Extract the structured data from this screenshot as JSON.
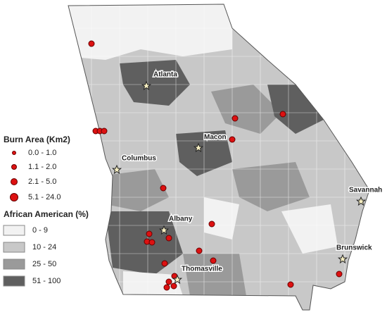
{
  "legend_burn": {
    "title": "Burn Area (Km2)",
    "items": [
      "0.0 - 1.0",
      "1.1 - 2.0",
      "2.1 - 5.0",
      "5.1 - 24.0"
    ]
  },
  "legend_race": {
    "title": "African American (%)",
    "items": [
      "0 - 9",
      "10 - 24",
      "25 - 50",
      "51 - 100"
    ]
  },
  "cities": [
    "Atlanta",
    "Macon",
    "Columbus",
    "Albany",
    "Savannah",
    "Brunswick",
    "Thomasville"
  ]
}
